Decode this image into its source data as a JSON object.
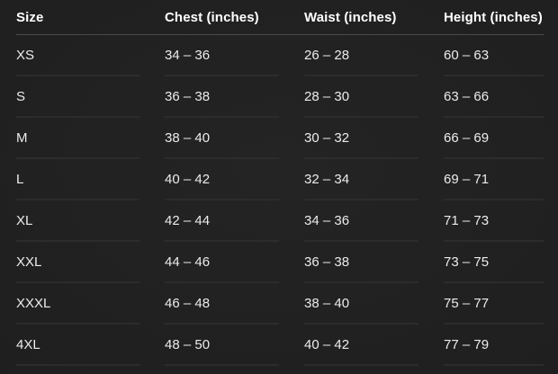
{
  "colors": {
    "background": "#1f1f1f",
    "text": "#ececec",
    "header_text": "#ffffff",
    "header_divider": "#4a4a4a",
    "row_divider": "#2c2c2c"
  },
  "chart_data": {
    "type": "table",
    "title": "",
    "columns": [
      "Size",
      "Chest (inches)",
      "Waist (inches)",
      "Height (inches)"
    ],
    "rows": [
      [
        "XS",
        "34 – 36",
        "26 – 28",
        "60 – 63"
      ],
      [
        "S",
        "36 – 38",
        "28 – 30",
        "63 – 66"
      ],
      [
        "M",
        "38 – 40",
        "30 – 32",
        "66 – 69"
      ],
      [
        "L",
        "40 – 42",
        "32 – 34",
        "69 – 71"
      ],
      [
        "XL",
        "42 – 44",
        "34 – 36",
        "71 – 73"
      ],
      [
        "XXL",
        "44 – 46",
        "36 – 38",
        "73 – 75"
      ],
      [
        "XXXL",
        "46 – 48",
        "38 – 40",
        "75 – 77"
      ],
      [
        "4XL",
        "48 – 50",
        "40 – 42",
        "77 – 79"
      ]
    ]
  }
}
